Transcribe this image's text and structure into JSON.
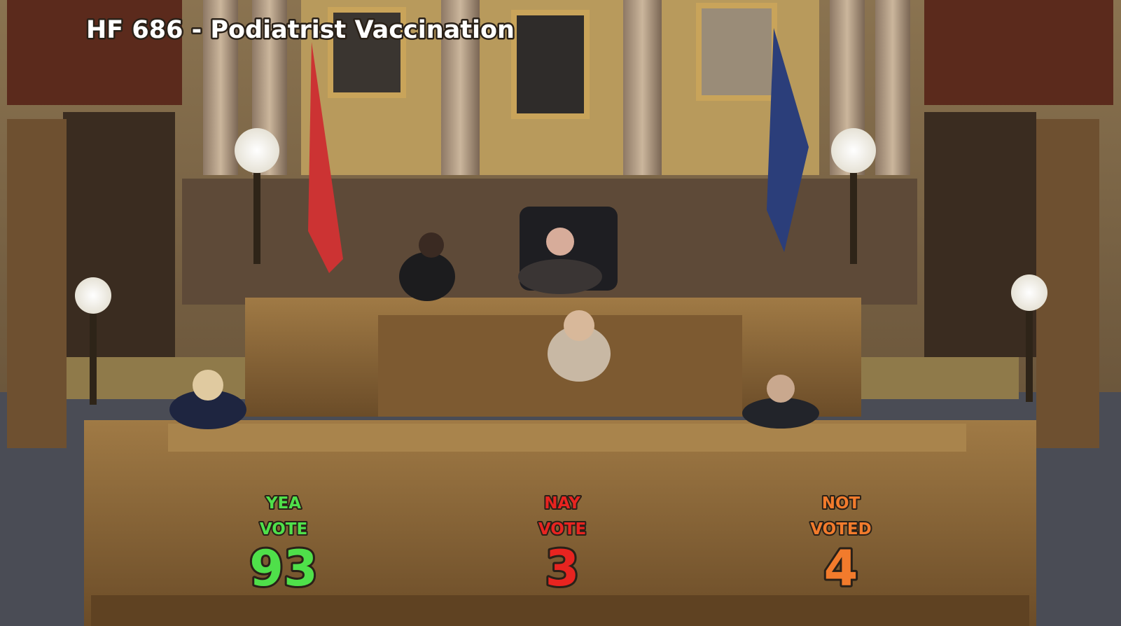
{
  "title": "HF 686 - Podiatrist Vaccination",
  "tallies": [
    {
      "label_lines": [
        "YEA",
        "VOTE"
      ],
      "count": 93,
      "color": "#4fe04a"
    },
    {
      "label_lines": [
        "NAY",
        "VOTE"
      ],
      "count": 3,
      "color": "#e82420"
    },
    {
      "label_lines": [
        "NOT",
        "VOTED"
      ],
      "count": 4,
      "color": "#f27b2c"
    }
  ]
}
